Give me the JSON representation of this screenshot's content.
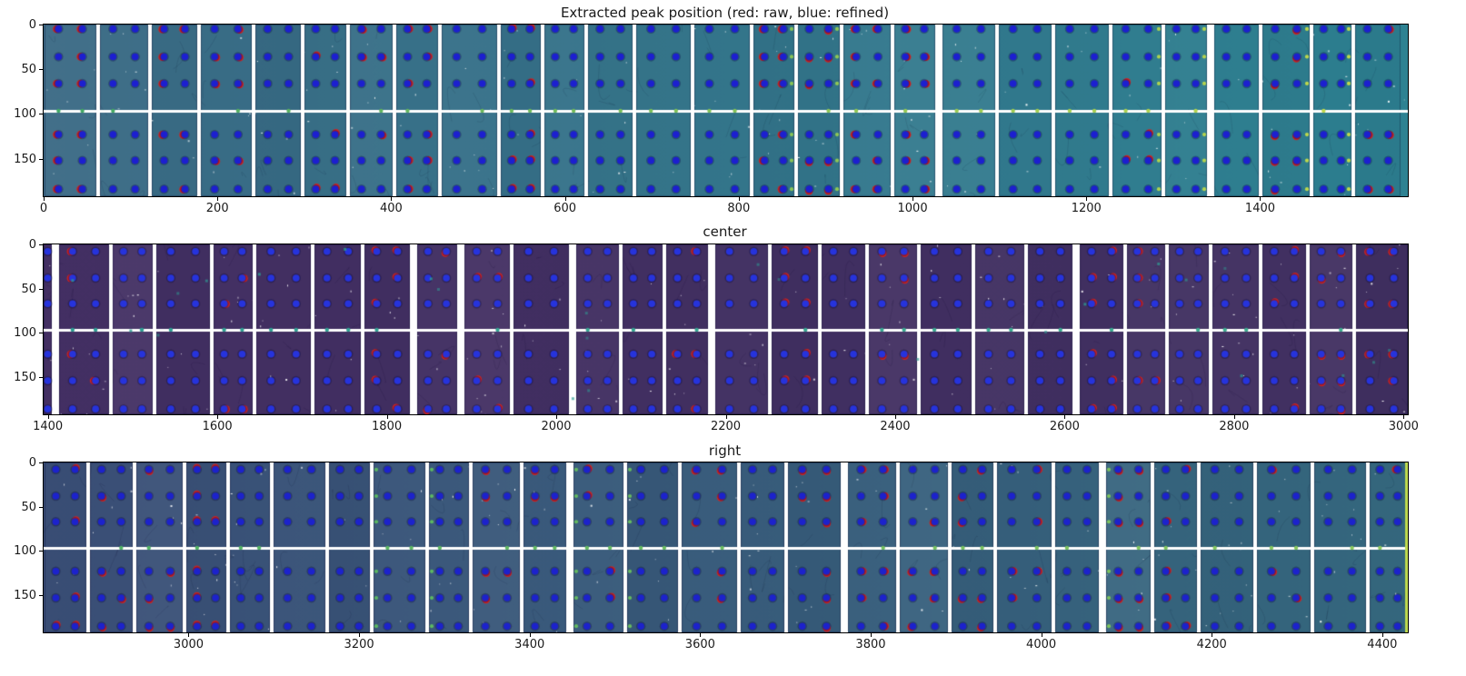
{
  "chart_data": [
    {
      "type": "heatmap",
      "title": "Extracted peak position (red: raw, blue: refined)",
      "legend": {
        "red": "raw",
        "blue": "refined"
      },
      "xlim": [
        0,
        1570
      ],
      "ylim": [
        0,
        192
      ],
      "y_inverted": true,
      "x_ticks": [
        0,
        200,
        400,
        600,
        800,
        1000,
        1200,
        1400
      ],
      "y_ticks": [
        0,
        50,
        100,
        150
      ],
      "grid": false,
      "image_left_color": "#3b6a85",
      "image_right_color": "#2e8292",
      "module_gap_color": "#ffffff",
      "horizontal_gap_y": 96,
      "raw_peak_color": "#d02323",
      "refined_peak_color": "#1c1fd0",
      "grid_marker_color_left": "#3fa965",
      "grid_marker_color_right": "#c8dc4a",
      "peak_rows_y": [
        5,
        36,
        66,
        123,
        152,
        184
      ]
    },
    {
      "type": "heatmap",
      "title": "center",
      "xlim": [
        1395,
        3005
      ],
      "ylim": [
        0,
        192
      ],
      "y_inverted": true,
      "x_ticks": [
        1400,
        1600,
        1800,
        2000,
        2200,
        2400,
        2600,
        2800,
        3000
      ],
      "y_ticks": [
        0,
        50,
        100,
        150
      ],
      "grid": false,
      "image_left_color": "#443064",
      "image_right_color": "#413061",
      "module_gap_color": "#ffffff",
      "horizontal_gap_y": 96,
      "raw_peak_color": "#d02323",
      "refined_peak_color": "#2633dc",
      "grid_marker_color_left": "#2e9d93",
      "grid_marker_color_right": "#3fae8f",
      "peak_rows_y": [
        8,
        38,
        67,
        124,
        154,
        186
      ]
    },
    {
      "type": "heatmap",
      "title": "right",
      "xlim": [
        2830,
        4430
      ],
      "ylim": [
        0,
        192
      ],
      "y_inverted": true,
      "x_ticks": [
        3000,
        3200,
        3400,
        3600,
        3800,
        4000,
        4200,
        4400
      ],
      "y_ticks": [
        0,
        50,
        100,
        150
      ],
      "grid": false,
      "image_left_color": "#3c5078",
      "image_right_color": "#366a80",
      "right_edge_stripe_color": "#bed94e",
      "module_gap_color": "#ffffff",
      "horizontal_gap_y": 96,
      "raw_peak_color": "#d02323",
      "refined_peak_color": "#1c22cc",
      "grid_marker_color_left": "#4bb164",
      "grid_marker_color_right": "#8cc95c",
      "peak_rows_y": [
        8,
        38,
        67,
        123,
        153,
        185
      ]
    }
  ]
}
